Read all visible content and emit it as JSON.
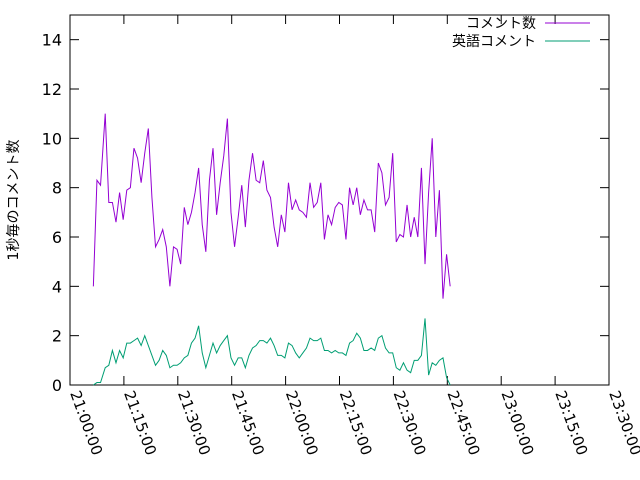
{
  "chart_data": {
    "type": "line",
    "ylabel": "1秒毎のコメント数",
    "xlim_minutes": [
      0,
      150
    ],
    "x_ticks": [
      "21:00:00",
      "21:15:00",
      "21:30:00",
      "21:45:00",
      "22:00:00",
      "22:15:00",
      "22:30:00",
      "22:45:00",
      "23:00:00",
      "23:15:00",
      "23:30:00"
    ],
    "ylim": [
      0,
      15
    ],
    "y_ticks": [
      0,
      2,
      4,
      6,
      8,
      10,
      12,
      14
    ],
    "grid": false,
    "legend_position": "top-right",
    "series": [
      {
        "name": "コメント数",
        "color": "#9400d3",
        "points": [
          [
            6.5,
            4.0
          ],
          [
            7.5,
            8.3
          ],
          [
            8.5,
            8.1
          ],
          [
            9.8,
            11.0
          ],
          [
            10.8,
            7.4
          ],
          [
            11.8,
            7.4
          ],
          [
            12.8,
            6.6
          ],
          [
            13.8,
            7.8
          ],
          [
            14.8,
            6.7
          ],
          [
            15.8,
            7.9
          ],
          [
            16.8,
            8.0
          ],
          [
            17.8,
            9.6
          ],
          [
            18.8,
            9.2
          ],
          [
            19.8,
            8.2
          ],
          [
            20.8,
            9.4
          ],
          [
            21.8,
            10.4
          ],
          [
            22.8,
            7.6
          ],
          [
            23.8,
            5.6
          ],
          [
            24.8,
            5.9
          ],
          [
            25.8,
            6.3
          ],
          [
            26.8,
            5.6
          ],
          [
            27.8,
            4.0
          ],
          [
            28.8,
            5.6
          ],
          [
            29.8,
            5.5
          ],
          [
            30.8,
            4.9
          ],
          [
            31.8,
            7.2
          ],
          [
            32.8,
            6.5
          ],
          [
            33.8,
            7.0
          ],
          [
            34.8,
            7.8
          ],
          [
            35.8,
            8.8
          ],
          [
            36.8,
            6.5
          ],
          [
            37.8,
            5.4
          ],
          [
            38.8,
            8.3
          ],
          [
            39.8,
            9.6
          ],
          [
            40.8,
            6.9
          ],
          [
            41.8,
            8.2
          ],
          [
            42.8,
            9.3
          ],
          [
            43.8,
            10.8
          ],
          [
            44.8,
            7.0
          ],
          [
            45.8,
            5.6
          ],
          [
            46.8,
            6.8
          ],
          [
            47.8,
            8.1
          ],
          [
            48.8,
            6.4
          ],
          [
            49.8,
            8.3
          ],
          [
            50.8,
            9.4
          ],
          [
            51.8,
            8.3
          ],
          [
            52.8,
            8.2
          ],
          [
            53.8,
            9.1
          ],
          [
            54.8,
            7.9
          ],
          [
            55.8,
            7.6
          ],
          [
            56.8,
            6.4
          ],
          [
            57.8,
            5.6
          ],
          [
            58.8,
            6.9
          ],
          [
            59.8,
            6.2
          ],
          [
            60.8,
            8.2
          ],
          [
            61.8,
            7.1
          ],
          [
            62.8,
            7.5
          ],
          [
            63.8,
            7.1
          ],
          [
            64.8,
            7.0
          ],
          [
            65.8,
            6.8
          ],
          [
            66.8,
            8.2
          ],
          [
            67.8,
            7.2
          ],
          [
            68.8,
            7.4
          ],
          [
            69.8,
            8.2
          ],
          [
            70.8,
            5.9
          ],
          [
            71.8,
            6.9
          ],
          [
            72.8,
            6.5
          ],
          [
            73.8,
            7.2
          ],
          [
            74.8,
            7.4
          ],
          [
            75.8,
            7.3
          ],
          [
            76.8,
            5.9
          ],
          [
            77.8,
            8.0
          ],
          [
            78.8,
            7.3
          ],
          [
            79.8,
            8.0
          ],
          [
            80.8,
            6.9
          ],
          [
            81.8,
            7.5
          ],
          [
            82.8,
            7.1
          ],
          [
            83.8,
            7.1
          ],
          [
            84.8,
            6.2
          ],
          [
            85.8,
            9.0
          ],
          [
            86.8,
            8.6
          ],
          [
            87.8,
            7.3
          ],
          [
            88.8,
            7.6
          ],
          [
            89.8,
            9.4
          ],
          [
            90.8,
            5.8
          ],
          [
            91.8,
            6.1
          ],
          [
            92.8,
            6.0
          ],
          [
            93.8,
            7.3
          ],
          [
            94.8,
            6.0
          ],
          [
            95.8,
            6.8
          ],
          [
            96.8,
            6.0
          ],
          [
            97.8,
            8.8
          ],
          [
            98.8,
            4.9
          ],
          [
            99.8,
            7.8
          ],
          [
            100.8,
            10.0
          ],
          [
            101.8,
            6.0
          ],
          [
            102.8,
            7.9
          ],
          [
            103.8,
            3.5
          ],
          [
            104.8,
            5.3
          ],
          [
            105.8,
            4.0
          ]
        ]
      },
      {
        "name": "英語コメント",
        "color": "#009e73",
        "points": [
          [
            6.5,
            0.0
          ],
          [
            7.5,
            0.1
          ],
          [
            8.5,
            0.1
          ],
          [
            9.8,
            0.7
          ],
          [
            10.8,
            0.8
          ],
          [
            11.8,
            1.4
          ],
          [
            12.8,
            0.9
          ],
          [
            13.8,
            1.4
          ],
          [
            14.8,
            1.1
          ],
          [
            15.8,
            1.7
          ],
          [
            16.8,
            1.7
          ],
          [
            17.8,
            1.8
          ],
          [
            18.8,
            1.9
          ],
          [
            19.8,
            1.6
          ],
          [
            20.8,
            2.0
          ],
          [
            21.8,
            1.6
          ],
          [
            22.8,
            1.2
          ],
          [
            23.8,
            0.8
          ],
          [
            24.8,
            1.0
          ],
          [
            25.8,
            1.4
          ],
          [
            26.8,
            1.2
          ],
          [
            27.8,
            0.7
          ],
          [
            28.8,
            0.8
          ],
          [
            29.8,
            0.8
          ],
          [
            30.8,
            0.9
          ],
          [
            31.8,
            1.1
          ],
          [
            32.8,
            1.2
          ],
          [
            33.8,
            1.7
          ],
          [
            34.8,
            1.9
          ],
          [
            35.8,
            2.4
          ],
          [
            36.8,
            1.3
          ],
          [
            37.8,
            0.7
          ],
          [
            38.8,
            1.2
          ],
          [
            39.8,
            1.7
          ],
          [
            40.8,
            1.3
          ],
          [
            41.8,
            1.6
          ],
          [
            42.8,
            1.8
          ],
          [
            43.8,
            2.0
          ],
          [
            44.8,
            1.1
          ],
          [
            45.8,
            0.8
          ],
          [
            46.8,
            1.1
          ],
          [
            47.8,
            1.1
          ],
          [
            48.8,
            0.7
          ],
          [
            49.8,
            1.2
          ],
          [
            50.8,
            1.5
          ],
          [
            51.8,
            1.6
          ],
          [
            52.8,
            1.8
          ],
          [
            53.8,
            1.8
          ],
          [
            54.8,
            1.7
          ],
          [
            55.8,
            1.9
          ],
          [
            56.8,
            1.6
          ],
          [
            57.8,
            1.2
          ],
          [
            58.8,
            1.2
          ],
          [
            59.8,
            1.1
          ],
          [
            60.8,
            1.7
          ],
          [
            61.8,
            1.6
          ],
          [
            62.8,
            1.3
          ],
          [
            63.8,
            1.1
          ],
          [
            64.8,
            1.3
          ],
          [
            65.8,
            1.5
          ],
          [
            66.8,
            1.9
          ],
          [
            67.8,
            1.8
          ],
          [
            68.8,
            1.8
          ],
          [
            69.8,
            1.9
          ],
          [
            70.8,
            1.4
          ],
          [
            71.8,
            1.4
          ],
          [
            72.8,
            1.3
          ],
          [
            73.8,
            1.4
          ],
          [
            74.8,
            1.3
          ],
          [
            75.8,
            1.3
          ],
          [
            76.8,
            1.2
          ],
          [
            77.8,
            1.7
          ],
          [
            78.8,
            1.8
          ],
          [
            79.8,
            2.1
          ],
          [
            80.8,
            1.9
          ],
          [
            81.8,
            1.4
          ],
          [
            82.8,
            1.4
          ],
          [
            83.8,
            1.5
          ],
          [
            84.8,
            1.4
          ],
          [
            85.8,
            1.9
          ],
          [
            86.8,
            2.0
          ],
          [
            87.8,
            1.5
          ],
          [
            88.8,
            1.3
          ],
          [
            89.8,
            1.3
          ],
          [
            90.8,
            0.7
          ],
          [
            91.8,
            0.6
          ],
          [
            92.8,
            0.9
          ],
          [
            93.8,
            0.6
          ],
          [
            94.8,
            0.5
          ],
          [
            95.8,
            1.0
          ],
          [
            96.8,
            1.0
          ],
          [
            97.8,
            1.2
          ],
          [
            98.8,
            2.7
          ],
          [
            99.8,
            0.4
          ],
          [
            100.8,
            0.9
          ],
          [
            101.8,
            0.8
          ],
          [
            102.8,
            1.0
          ],
          [
            103.8,
            1.1
          ],
          [
            104.8,
            0.3
          ],
          [
            105.8,
            0.0
          ]
        ]
      }
    ]
  }
}
